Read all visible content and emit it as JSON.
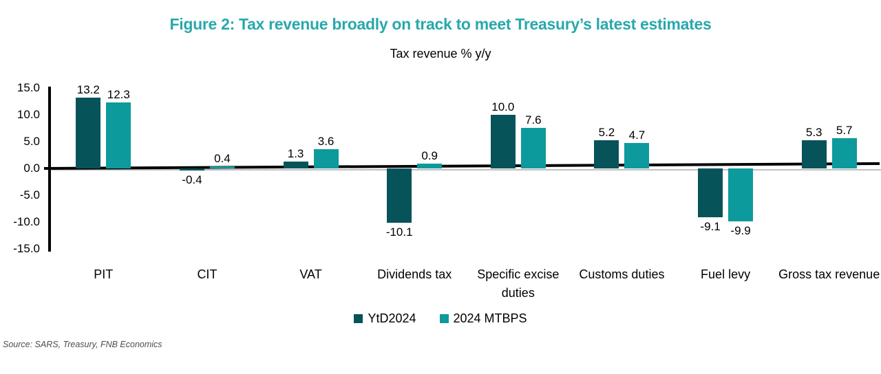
{
  "figure": {
    "title": "Figure 2: Tax revenue broadly on track to meet Treasury’s latest estimates",
    "title_color": "#28a8ac",
    "source": "Source: SARS, Treasury, FNB Economics"
  },
  "chart_data": {
    "type": "bar",
    "title": "Tax revenue % y/y",
    "categories": [
      "PIT",
      "CIT",
      "VAT",
      "Dividends tax",
      "Specific excise duties",
      "Customs duties",
      "Fuel levy",
      "Gross tax revenue"
    ],
    "series": [
      {
        "name": "YtD2024",
        "color": "#06535a",
        "values": [
          13.2,
          -0.4,
          1.3,
          -10.1,
          10.0,
          5.2,
          -9.1,
          5.3
        ]
      },
      {
        "name": "2024 MTBPS",
        "color": "#0d9a9c",
        "values": [
          12.3,
          0.4,
          3.6,
          0.9,
          7.6,
          4.7,
          -9.9,
          5.7
        ]
      }
    ],
    "ylim": [
      -15.0,
      15.0
    ],
    "ytick_labels": [
      "15.0",
      "10.0",
      "5.0",
      "0.0",
      "-5.0",
      "-10.0",
      "-15.0"
    ],
    "grid": false,
    "legend_position": "bottom",
    "value_labels": true,
    "value_label_decimals": 1
  }
}
